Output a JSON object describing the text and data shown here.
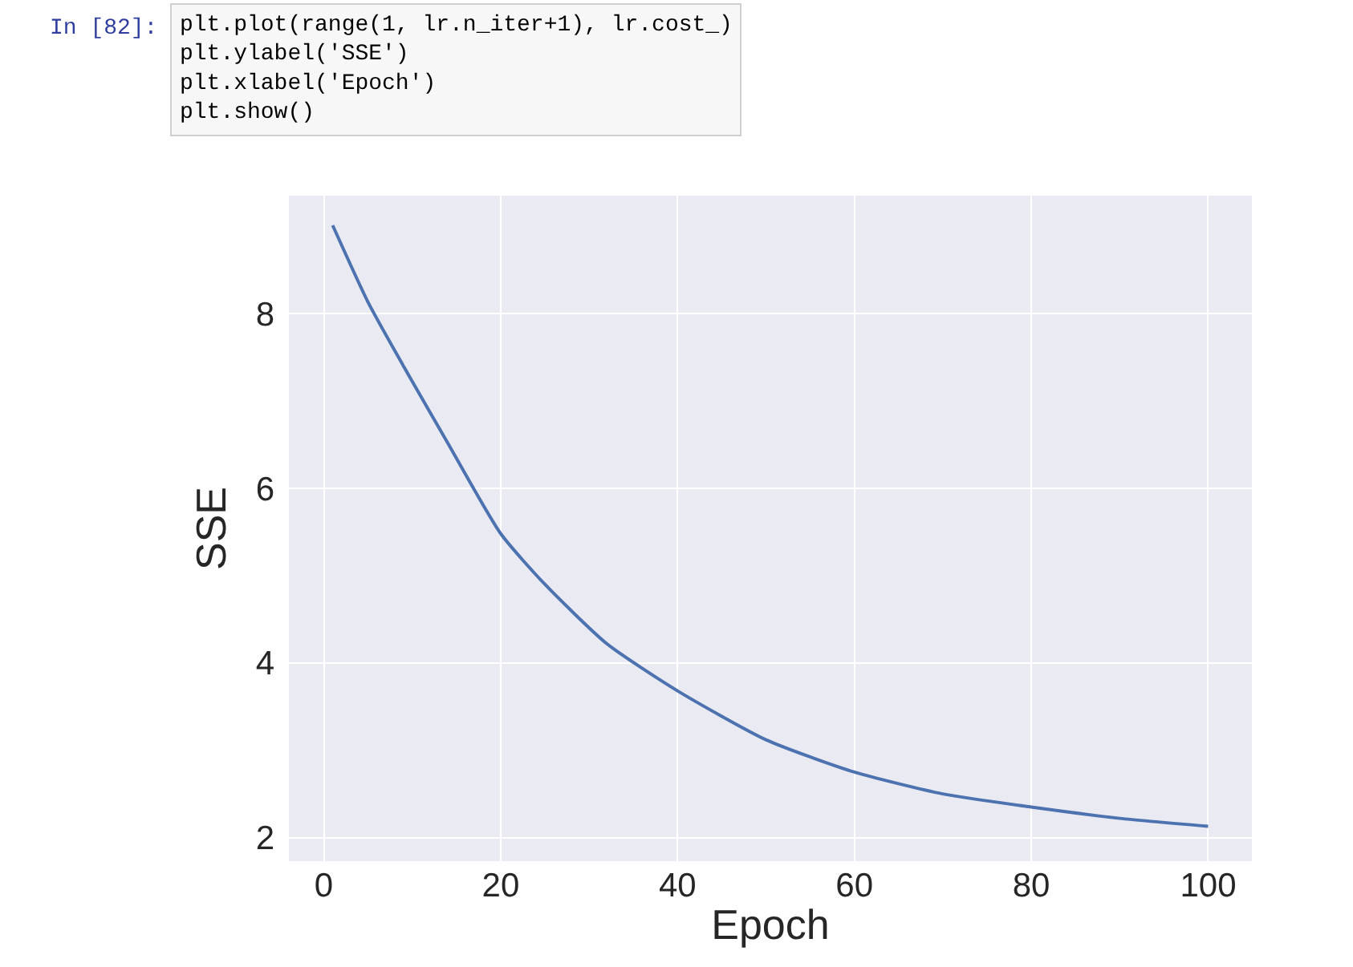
{
  "chart_data": {
    "type": "line",
    "xlabel": "Epoch",
    "ylabel": "SSE",
    "annotations": [
      "In [82]:",
      "plt.plot(range(1, lr.n_iter+1), lr.cost_)\nplt.ylabel('SSE')\nplt.xlabel('Epoch')\nplt.show()"
    ],
    "x": [
      1,
      5,
      9,
      14,
      20,
      25,
      32,
      40,
      50,
      60,
      70,
      80,
      90,
      100
    ],
    "series": [
      {
        "color": "#4c72b0",
        "values": [
          9.01,
          8.13,
          7.4,
          6.52,
          5.48,
          4.9,
          4.22,
          3.68,
          3.12,
          2.75,
          2.5,
          2.35,
          2.22,
          2.13
        ]
      }
    ],
    "xlim": [
      -3.95,
      104.95
    ],
    "ylim": [
      1.73,
      9.35
    ],
    "xticks": [
      0,
      20,
      40,
      60,
      80,
      100
    ],
    "yticks": [
      2,
      4,
      6,
      8
    ],
    "grid": true,
    "marker": "none",
    "line_style": "solid"
  }
}
